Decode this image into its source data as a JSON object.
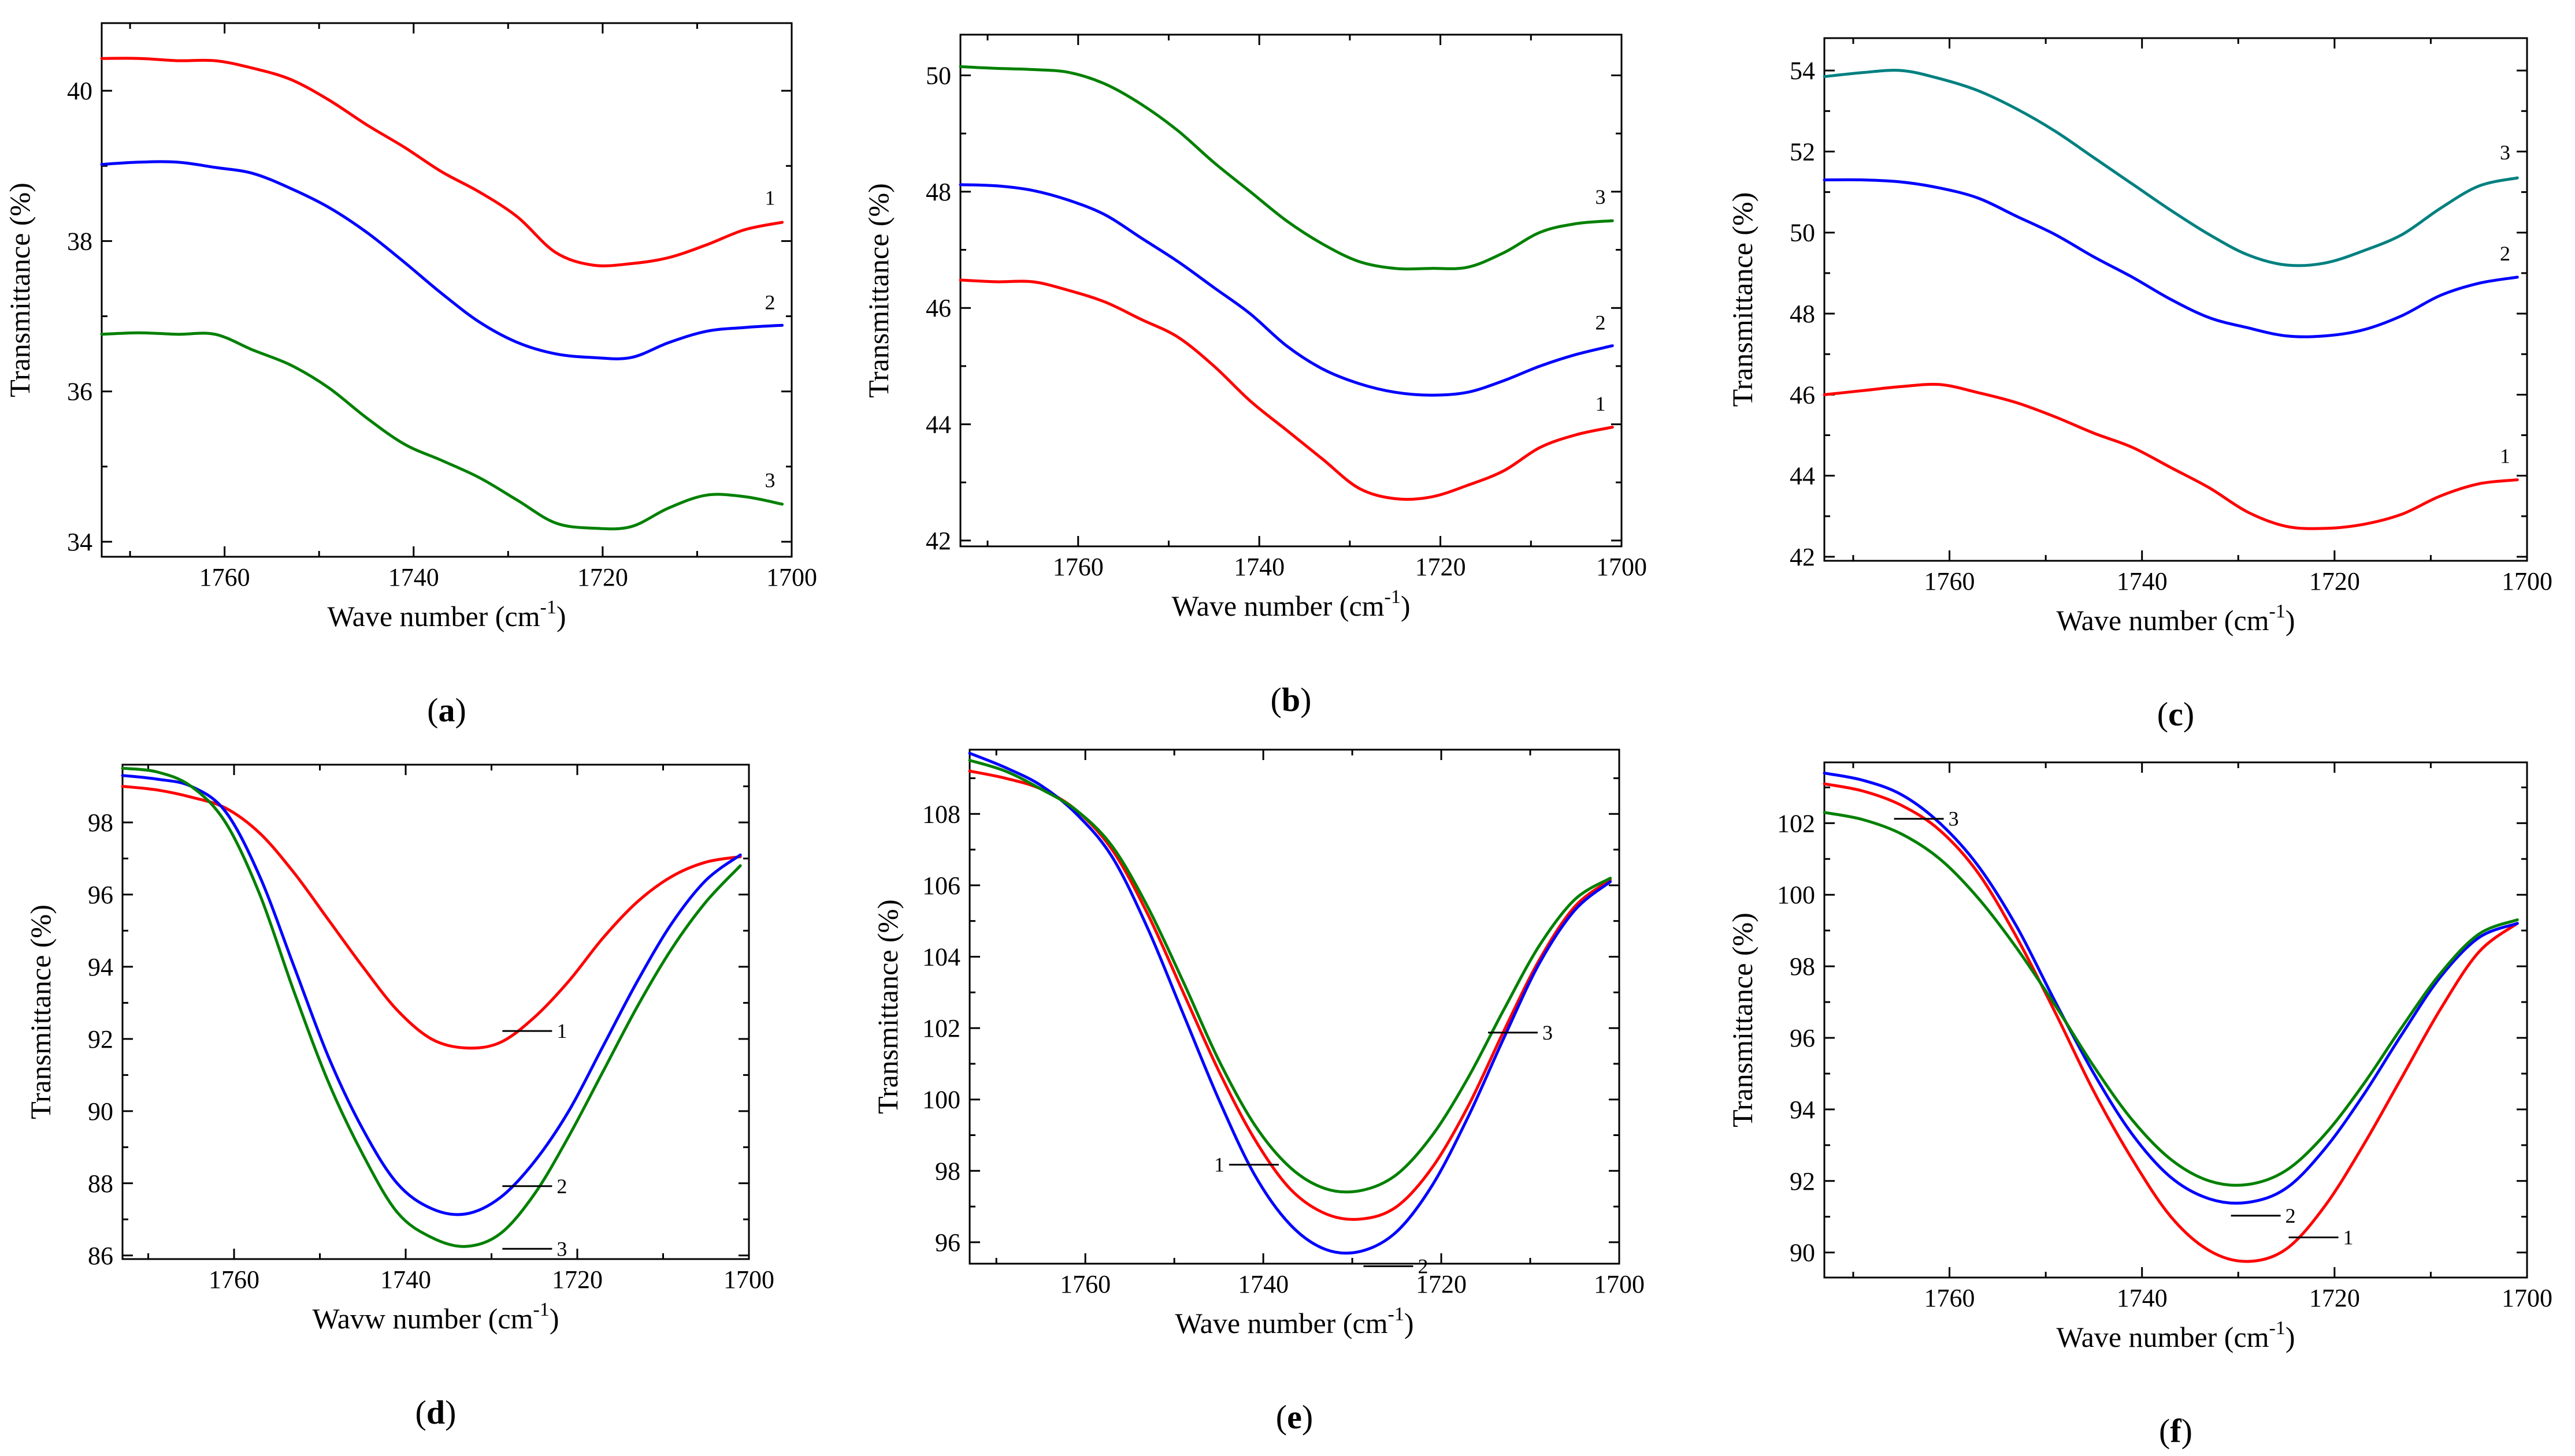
{
  "figure": {
    "title": ""
  },
  "chart_data": [
    {
      "type": "line",
      "panel_label": "(a)",
      "title": "",
      "xlabel": "Wave number (cm-1)",
      "ylabel": "Transmittance (%)",
      "xlim": [
        1773,
        1700
      ],
      "ylim": [
        33.8,
        40.9
      ],
      "xticks": [
        1760,
        1740,
        1720,
        1700
      ],
      "yticks": [
        34,
        36,
        38,
        40
      ],
      "x": [
        1773,
        1769,
        1765,
        1761,
        1757,
        1753,
        1749,
        1745,
        1741,
        1737,
        1733,
        1729,
        1725,
        1721,
        1717,
        1713,
        1709,
        1705,
        1701
      ],
      "series": [
        {
          "name": "1",
          "label": "1",
          "color": "#ff0000",
          "values": [
            40.43,
            40.43,
            40.4,
            40.4,
            40.3,
            40.15,
            39.88,
            39.55,
            39.25,
            38.92,
            38.65,
            38.32,
            37.85,
            37.68,
            37.7,
            37.78,
            37.95,
            38.15,
            38.25
          ]
        },
        {
          "name": "2",
          "label": "2",
          "color": "#0000ff",
          "values": [
            39.02,
            39.05,
            39.05,
            38.98,
            38.9,
            38.7,
            38.45,
            38.12,
            37.72,
            37.3,
            36.92,
            36.65,
            36.5,
            36.45,
            36.45,
            36.65,
            36.8,
            36.85,
            36.88
          ]
        },
        {
          "name": "3",
          "label": "3",
          "color": "#008000",
          "values": [
            36.76,
            36.78,
            36.76,
            36.76,
            36.55,
            36.35,
            36.05,
            35.65,
            35.3,
            35.08,
            34.85,
            34.55,
            34.25,
            34.18,
            34.2,
            34.45,
            34.62,
            34.6,
            34.5
          ]
        }
      ]
    },
    {
      "type": "line",
      "panel_label": "(b)",
      "title": "",
      "xlabel": "Wave number (cm-1)",
      "ylabel": "Transmittance (%)",
      "xlim": [
        1773,
        1700
      ],
      "ylim": [
        41.9,
        50.7
      ],
      "xticks": [
        1760,
        1740,
        1720,
        1700
      ],
      "yticks": [
        42,
        44,
        46,
        48,
        50
      ],
      "x": [
        1773,
        1769,
        1765,
        1761,
        1757,
        1753,
        1749,
        1745,
        1741,
        1737,
        1733,
        1729,
        1725,
        1721,
        1717,
        1713,
        1709,
        1705,
        1701
      ],
      "series": [
        {
          "name": "1",
          "label": "1",
          "color": "#ff0000",
          "values": [
            46.48,
            46.45,
            46.45,
            46.3,
            46.1,
            45.8,
            45.5,
            45.0,
            44.4,
            43.9,
            43.4,
            42.9,
            42.72,
            42.75,
            42.95,
            43.2,
            43.6,
            43.82,
            43.95
          ]
        },
        {
          "name": "2",
          "label": "2",
          "color": "#0000ff",
          "values": [
            48.12,
            48.1,
            48.02,
            47.85,
            47.6,
            47.2,
            46.8,
            46.35,
            45.9,
            45.35,
            44.95,
            44.7,
            44.55,
            44.5,
            44.55,
            44.75,
            45.0,
            45.2,
            45.35
          ]
        },
        {
          "name": "3",
          "label": "3",
          "color": "#008000",
          "values": [
            50.15,
            50.12,
            50.1,
            50.05,
            49.85,
            49.5,
            49.05,
            48.5,
            48.0,
            47.5,
            47.1,
            46.8,
            46.68,
            46.68,
            46.7,
            46.95,
            47.3,
            47.45,
            47.5
          ]
        }
      ]
    },
    {
      "type": "line",
      "panel_label": "(c)",
      "title": "",
      "xlabel": "Wave number (cm-1)",
      "ylabel": "Transmittance (%)",
      "xlim": [
        1773,
        1700
      ],
      "ylim": [
        41.9,
        54.8
      ],
      "xticks": [
        1760,
        1740,
        1720,
        1700
      ],
      "yticks": [
        42,
        44,
        46,
        48,
        50,
        52,
        54
      ],
      "x": [
        1773,
        1769,
        1765,
        1761,
        1757,
        1753,
        1749,
        1745,
        1741,
        1737,
        1733,
        1729,
        1725,
        1721,
        1717,
        1713,
        1709,
        1705,
        1701
      ],
      "series": [
        {
          "name": "1",
          "label": "1",
          "color": "#ff0000",
          "values": [
            46.0,
            46.1,
            46.2,
            46.25,
            46.05,
            45.8,
            45.45,
            45.05,
            44.7,
            44.2,
            43.7,
            43.1,
            42.75,
            42.7,
            42.8,
            43.05,
            43.5,
            43.8,
            43.9
          ]
        },
        {
          "name": "2",
          "label": "2",
          "color": "#0000ff",
          "values": [
            51.3,
            51.3,
            51.25,
            51.1,
            50.85,
            50.4,
            49.95,
            49.4,
            48.9,
            48.35,
            47.9,
            47.65,
            47.45,
            47.45,
            47.6,
            47.95,
            48.45,
            48.75,
            48.9
          ]
        },
        {
          "name": "3",
          "label": "3",
          "color": "#008080",
          "values": [
            53.85,
            53.95,
            54.0,
            53.8,
            53.5,
            53.05,
            52.5,
            51.85,
            51.2,
            50.55,
            49.95,
            49.45,
            49.2,
            49.25,
            49.55,
            49.95,
            50.6,
            51.15,
            51.35
          ]
        }
      ]
    },
    {
      "type": "line",
      "panel_label": "(d)",
      "title": "",
      "xlabel": "Wavw number (cm-1)",
      "ylabel": "Transmittance (%)",
      "xlim": [
        1773,
        1700
      ],
      "ylim": [
        85.9,
        99.6
      ],
      "xticks": [
        1760,
        1740,
        1720,
        1700
      ],
      "yticks": [
        86,
        88,
        90,
        92,
        94,
        96,
        98
      ],
      "x": [
        1773,
        1769,
        1765,
        1761,
        1757,
        1753,
        1749,
        1745,
        1741,
        1737,
        1733,
        1729,
        1725,
        1721,
        1717,
        1713,
        1709,
        1705,
        1701
      ],
      "series": [
        {
          "name": "1",
          "label": "1",
          "color": "#ff0000",
          "values": [
            99.0,
            98.9,
            98.7,
            98.4,
            97.7,
            96.6,
            95.3,
            94.0,
            92.8,
            92.0,
            91.75,
            91.9,
            92.6,
            93.6,
            94.8,
            95.8,
            96.5,
            96.9,
            97.05
          ]
        },
        {
          "name": "2",
          "label": "2",
          "color": "#0000ff",
          "values": [
            99.3,
            99.2,
            99.0,
            98.3,
            96.5,
            94.0,
            91.5,
            89.5,
            88.0,
            87.3,
            87.15,
            87.6,
            88.6,
            90.0,
            91.8,
            93.6,
            95.2,
            96.4,
            97.1
          ]
        },
        {
          "name": "3",
          "label": "3",
          "color": "#008000",
          "values": [
            99.5,
            99.4,
            99.0,
            98.0,
            96.0,
            93.3,
            90.8,
            88.8,
            87.2,
            86.5,
            86.25,
            86.6,
            87.7,
            89.3,
            91.1,
            92.9,
            94.5,
            95.8,
            96.8
          ]
        }
      ]
    },
    {
      "type": "line",
      "panel_label": "(e)",
      "title": "",
      "xlabel": "Wave number (cm-1)",
      "ylabel": "Transmittance (%)",
      "xlim": [
        1773,
        1700
      ],
      "ylim": [
        95.4,
        109.8
      ],
      "xticks": [
        1760,
        1740,
        1720,
        1700
      ],
      "yticks": [
        96,
        98,
        100,
        102,
        104,
        106,
        108
      ],
      "x": [
        1773,
        1769,
        1765,
        1761,
        1757,
        1753,
        1749,
        1745,
        1741,
        1737,
        1733,
        1729,
        1725,
        1721,
        1717,
        1713,
        1709,
        1705,
        1701
      ],
      "series": [
        {
          "name": "1",
          "label": "1",
          "color": "#ff0000",
          "values": [
            109.2,
            109.0,
            108.7,
            108.1,
            107.0,
            105.2,
            103.0,
            100.8,
            98.9,
            97.5,
            96.8,
            96.65,
            97.0,
            98.1,
            99.8,
            101.9,
            103.9,
            105.4,
            106.15
          ]
        },
        {
          "name": "2",
          "label": "2",
          "color": "#0000ff",
          "values": [
            109.7,
            109.3,
            108.8,
            108.0,
            106.8,
            104.8,
            102.4,
            100.0,
            97.9,
            96.5,
            95.8,
            95.75,
            96.3,
            97.6,
            99.5,
            101.7,
            103.8,
            105.3,
            106.1
          ]
        },
        {
          "name": "3",
          "label": "3",
          "color": "#008000",
          "values": [
            109.5,
            109.2,
            108.7,
            108.1,
            107.1,
            105.4,
            103.3,
            101.1,
            99.3,
            98.1,
            97.5,
            97.45,
            97.9,
            99.0,
            100.6,
            102.5,
            104.3,
            105.6,
            106.2
          ]
        }
      ]
    },
    {
      "type": "line",
      "panel_label": "(f)",
      "title": "",
      "xlabel": "Wave number (cm-1)",
      "ylabel": "Transmittance (%)",
      "xlim": [
        1773,
        1700
      ],
      "ylim": [
        89.3,
        103.7
      ],
      "xticks": [
        1760,
        1740,
        1720,
        1700
      ],
      "yticks": [
        90,
        92,
        94,
        96,
        98,
        100,
        102
      ],
      "x": [
        1773,
        1769,
        1765,
        1761,
        1757,
        1753,
        1749,
        1745,
        1741,
        1737,
        1733,
        1729,
        1725,
        1721,
        1717,
        1713,
        1709,
        1705,
        1701
      ],
      "series": [
        {
          "name": "1",
          "label": "1",
          "color": "#ff0000",
          "values": [
            103.1,
            102.9,
            102.5,
            101.8,
            100.6,
            98.8,
            96.7,
            94.5,
            92.6,
            91.0,
            90.05,
            89.75,
            90.1,
            91.3,
            93.0,
            94.9,
            96.8,
            98.4,
            99.2
          ]
        },
        {
          "name": "2",
          "label": "2",
          "color": "#0000ff",
          "values": [
            103.4,
            103.2,
            102.8,
            102.0,
            100.8,
            99.1,
            97.0,
            95.0,
            93.3,
            92.1,
            91.5,
            91.4,
            91.8,
            92.9,
            94.4,
            96.1,
            97.7,
            98.8,
            99.2
          ]
        },
        {
          "name": "3",
          "label": "3",
          "color": "#008000",
          "values": [
            102.3,
            102.1,
            101.7,
            101.0,
            99.9,
            98.5,
            96.9,
            95.2,
            93.7,
            92.6,
            92.0,
            91.9,
            92.3,
            93.3,
            94.7,
            96.3,
            97.8,
            98.9,
            99.3
          ]
        }
      ]
    }
  ]
}
